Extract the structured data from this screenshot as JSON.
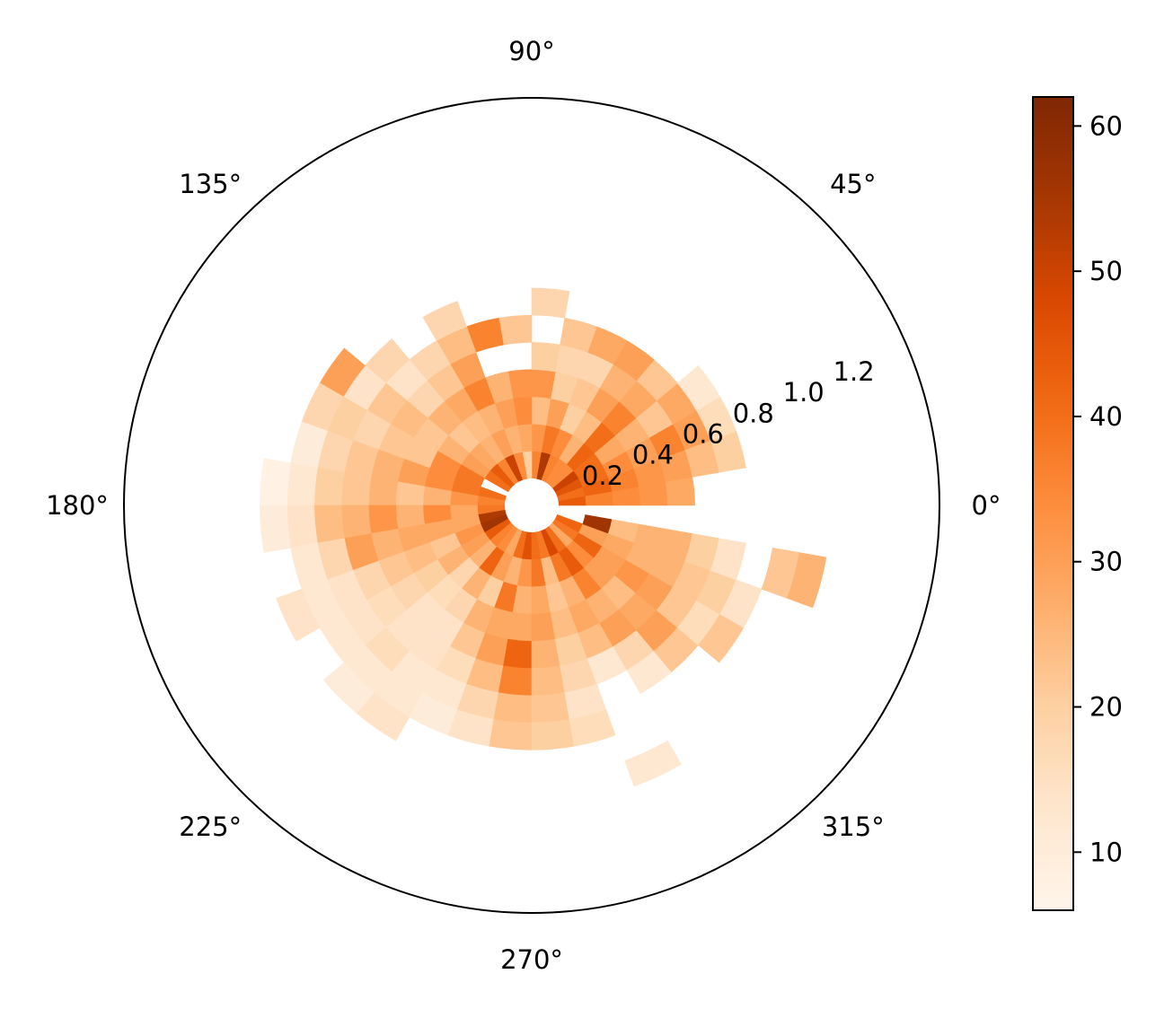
{
  "chart_data": {
    "type": "heatmap",
    "projection": "polar",
    "colormap": "Oranges",
    "theta_start_deg": 5,
    "theta_step_deg": 10,
    "r_inner": 0.1,
    "r_step": 0.1,
    "r_ticks": [
      "0.2",
      "0.4",
      "0.6",
      "0.8",
      "1.0",
      "1.2"
    ],
    "r_tick_values": [
      0.2,
      0.4,
      0.6,
      0.8,
      1.0,
      1.2
    ],
    "r_label_angle_deg": 22.5,
    "r_max": 1.5,
    "theta_ticks": [
      "0°",
      "45°",
      "90°",
      "135°",
      "180°",
      "225°",
      "270°",
      "315°"
    ],
    "theta_tick_values": [
      0,
      45,
      90,
      135,
      180,
      225,
      270,
      315
    ],
    "colorbar": {
      "min": 6,
      "max": 62,
      "ticks": [
        "10",
        "20",
        "30",
        "40",
        "50",
        "60"
      ],
      "tick_values": [
        10,
        20,
        30,
        40,
        50,
        60
      ]
    },
    "grid": false,
    "description_note": "",
    "cells": [
      [
        5,
        [
          44,
          36,
          34,
          32,
          28
        ]
      ],
      [
        15,
        [
          40,
          42,
          36,
          32,
          30,
          24,
          20
        ]
      ],
      [
        25,
        [
          45,
          40,
          34,
          30,
          36,
          30,
          16
        ]
      ],
      [
        35,
        [
          50,
          40,
          28,
          26,
          22,
          28,
          12
        ]
      ],
      [
        45,
        [
          34,
          42,
          40,
          36,
          28,
          22
        ]
      ],
      [
        55,
        [
          34,
          26,
          24,
          30,
          26,
          30
        ]
      ],
      [
        65,
        [
          36,
          34,
          20,
          22,
          18,
          28
        ]
      ],
      [
        75,
        [
          54,
          38,
          30,
          20,
          18,
          22
        ]
      ],
      [
        85,
        [
          36,
          32,
          24,
          32,
          20,
          null,
          18
        ]
      ],
      [
        95,
        [
          20,
          28,
          34,
          32,
          null,
          22
        ]
      ],
      [
        105,
        [
          34,
          26,
          30,
          26,
          null,
          36,
          null
        ]
      ],
      [
        115,
        [
          50,
          30,
          26,
          36,
          30,
          24,
          18,
          null
        ]
      ],
      [
        125,
        [
          36,
          26,
          24,
          28,
          22,
          18,
          null
        ]
      ],
      [
        135,
        [
          44,
          28,
          22,
          26,
          18,
          14,
          18
        ]
      ],
      [
        145,
        [
          40,
          30,
          26,
          22,
          24,
          22,
          14,
          30
        ]
      ],
      [
        155,
        [
          null,
          38,
          34,
          22,
          22,
          18,
          20,
          18
        ]
      ],
      [
        165,
        [
          40,
          38,
          34,
          30,
          26,
          22,
          18,
          10,
          null
        ]
      ],
      [
        175,
        [
          36,
          32,
          26,
          22,
          26,
          22,
          20,
          12,
          8
        ]
      ],
      [
        185,
        [
          38,
          28,
          34,
          26,
          32,
          26,
          24,
          14,
          10
        ]
      ],
      [
        195,
        [
          54,
          28,
          28,
          28,
          26,
          30,
          18,
          12,
          null
        ]
      ],
      [
        205,
        [
          56,
          32,
          22,
          24,
          22,
          18,
          14,
          12,
          14
        ]
      ],
      [
        215,
        [
          44,
          30,
          26,
          20,
          18,
          16,
          14,
          12,
          null
        ]
      ],
      [
        225,
        [
          36,
          26,
          18,
          16,
          14,
          14,
          16,
          12,
          10
        ]
      ],
      [
        235,
        [
          34,
          42,
          26,
          18,
          14,
          14,
          12,
          12,
          14
        ]
      ],
      [
        245,
        [
          28,
          30,
          20,
          26,
          22,
          16,
          12,
          10,
          null
        ]
      ],
      [
        255,
        [
          40,
          26,
          38,
          28,
          30,
          24,
          18,
          14,
          null
        ]
      ],
      [
        265,
        [
          46,
          32,
          26,
          28,
          42,
          36,
          24,
          22,
          null
        ]
      ],
      [
        275,
        [
          40,
          38,
          28,
          30,
          26,
          24,
          22,
          20,
          null
        ]
      ],
      [
        285,
        [
          38,
          24,
          22,
          24,
          20,
          18,
          14,
          16
        ]
      ],
      [
        295,
        [
          48,
          38,
          26,
          28,
          24,
          12,
          null,
          null,
          null,
          12
        ]
      ],
      [
        305,
        [
          40,
          44,
          36,
          26,
          30,
          18,
          12
        ]
      ],
      [
        315,
        [
          28,
          34,
          30,
          24,
          28,
          30,
          22,
          null,
          null
        ]
      ],
      [
        325,
        [
          38,
          42,
          30,
          32,
          30,
          22,
          16,
          22
        ]
      ],
      [
        335,
        [
          42,
          30,
          28,
          26,
          26,
          22,
          20,
          14,
          null
        ]
      ],
      [
        345,
        [
          null,
          56,
          24,
          26,
          26,
          20,
          14,
          null,
          22,
          26
        ]
      ],
      [
        355,
        [
          null
        ]
      ]
    ]
  }
}
